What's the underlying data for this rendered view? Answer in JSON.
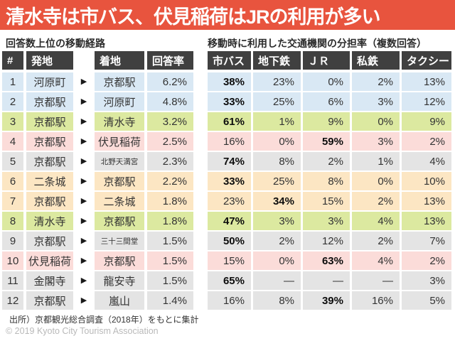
{
  "title": "清水寺は市バス、伏見稲荷はJRの利用が多い",
  "left_section": {
    "label": "回答数上位の移動経路",
    "headers": {
      "rank": "#",
      "origin": "発地",
      "destination": "着地",
      "rate": "回答率"
    }
  },
  "right_section": {
    "label": "移動時に利用した交通機関の分担率（複数回答）",
    "headers": [
      "市バス",
      "地下鉄",
      "ＪＲ",
      "私鉄",
      "タクシー"
    ]
  },
  "icons": {
    "arrow_right": "▶"
  },
  "rows": [
    {
      "rank": "1",
      "origin": "河原町",
      "destination": "京都駅",
      "rate": "6.2%",
      "color": "blue",
      "values": [
        "38%",
        "23%",
        "0%",
        "2%",
        "13%"
      ],
      "bold_col": 0
    },
    {
      "rank": "2",
      "origin": "京都駅",
      "destination": "河原町",
      "rate": "4.8%",
      "color": "blue",
      "values": [
        "33%",
        "25%",
        "6%",
        "3%",
        "12%"
      ],
      "bold_col": 0
    },
    {
      "rank": "3",
      "origin": "京都駅",
      "destination": "清水寺",
      "rate": "3.2%",
      "color": "green",
      "values": [
        "61%",
        "1%",
        "9%",
        "0%",
        "9%"
      ],
      "bold_col": 0
    },
    {
      "rank": "4",
      "origin": "京都駅",
      "destination": "伏見稲荷",
      "rate": "2.5%",
      "color": "pink",
      "values": [
        "16%",
        "0%",
        "59%",
        "3%",
        "2%"
      ],
      "bold_col": 2
    },
    {
      "rank": "5",
      "origin": "京都駅",
      "destination": "北野天満宮",
      "rate": "2.3%",
      "color": "gray",
      "values": [
        "74%",
        "8%",
        "2%",
        "1%",
        "4%"
      ],
      "bold_col": 0,
      "dest_small": true
    },
    {
      "rank": "6",
      "origin": "二条城",
      "destination": "京都駅",
      "rate": "2.2%",
      "color": "orange",
      "values": [
        "33%",
        "25%",
        "8%",
        "0%",
        "10%"
      ],
      "bold_col": 0
    },
    {
      "rank": "7",
      "origin": "京都駅",
      "destination": "二条城",
      "rate": "1.8%",
      "color": "orange",
      "values": [
        "23%",
        "34%",
        "15%",
        "2%",
        "13%"
      ],
      "bold_col": 1
    },
    {
      "rank": "8",
      "origin": "清水寺",
      "destination": "京都駅",
      "rate": "1.8%",
      "color": "green",
      "values": [
        "47%",
        "3%",
        "3%",
        "4%",
        "13%"
      ],
      "bold_col": 0
    },
    {
      "rank": "9",
      "origin": "京都駅",
      "destination": "三十三間堂",
      "rate": "1.5%",
      "color": "gray",
      "values": [
        "50%",
        "2%",
        "12%",
        "2%",
        "7%"
      ],
      "bold_col": 0,
      "dest_small": true
    },
    {
      "rank": "10",
      "origin": "伏見稲荷",
      "destination": "京都駅",
      "rate": "1.5%",
      "color": "pink",
      "values": [
        "15%",
        "0%",
        "63%",
        "4%",
        "2%"
      ],
      "bold_col": 2
    },
    {
      "rank": "11",
      "origin": "金閣寺",
      "destination": "龍安寺",
      "rate": "1.5%",
      "color": "gray",
      "values": [
        "65%",
        "—",
        "—",
        "—",
        "3%"
      ],
      "bold_col": 0
    },
    {
      "rank": "12",
      "origin": "京都駅",
      "destination": "嵐山",
      "rate": "1.4%",
      "color": "gray",
      "values": [
        "16%",
        "8%",
        "39%",
        "16%",
        "5%"
      ],
      "bold_col": 2
    }
  ],
  "footer": {
    "source": "出所）京都観光総合調査（2018年）をもとに集計",
    "copyright": "© 2019 Kyoto City Tourism Association"
  },
  "colors": {
    "title_bg": "#e8543e",
    "header_bg": "#404040",
    "row_blue": "#d9e8f4",
    "row_green": "#dce9a0",
    "row_pink": "#fbdcd9",
    "row_orange": "#fce6c3",
    "row_gray": "#e4e4e4",
    "text": "#333333",
    "copyright_text": "#b9b9b9"
  }
}
